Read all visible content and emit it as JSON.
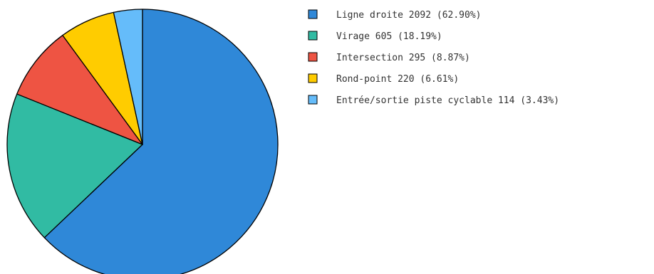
{
  "chart_data": {
    "type": "pie",
    "title": "",
    "slices": [
      {
        "label": "Ligne droite",
        "value": 2092,
        "percent": "62.90%",
        "color": "#2f88d8"
      },
      {
        "label": "Virage",
        "value": 605,
        "percent": "18.19%",
        "color": "#31bba3"
      },
      {
        "label": "Intersection",
        "value": 295,
        "percent": "8.87%",
        "color": "#ee5443"
      },
      {
        "label": "Rond-point",
        "value": 220,
        "percent": "6.61%",
        "color": "#ffcc00"
      },
      {
        "label": "Entrée/sortie piste cyclable",
        "value": 114,
        "percent": "3.43%",
        "color": "#65bcfa"
      }
    ],
    "legend": {
      "position": "top-right",
      "entries": [
        "Ligne droite 2092 (62.90%)",
        "Virage 605 (18.19%)",
        "Intersection 295 (8.87%)",
        "Rond-point 220 (6.61%)",
        "Entrée/sortie piste cyclable 114 (3.43%)"
      ]
    },
    "start_angle": "12 o'clock",
    "direction": "clockwise"
  }
}
